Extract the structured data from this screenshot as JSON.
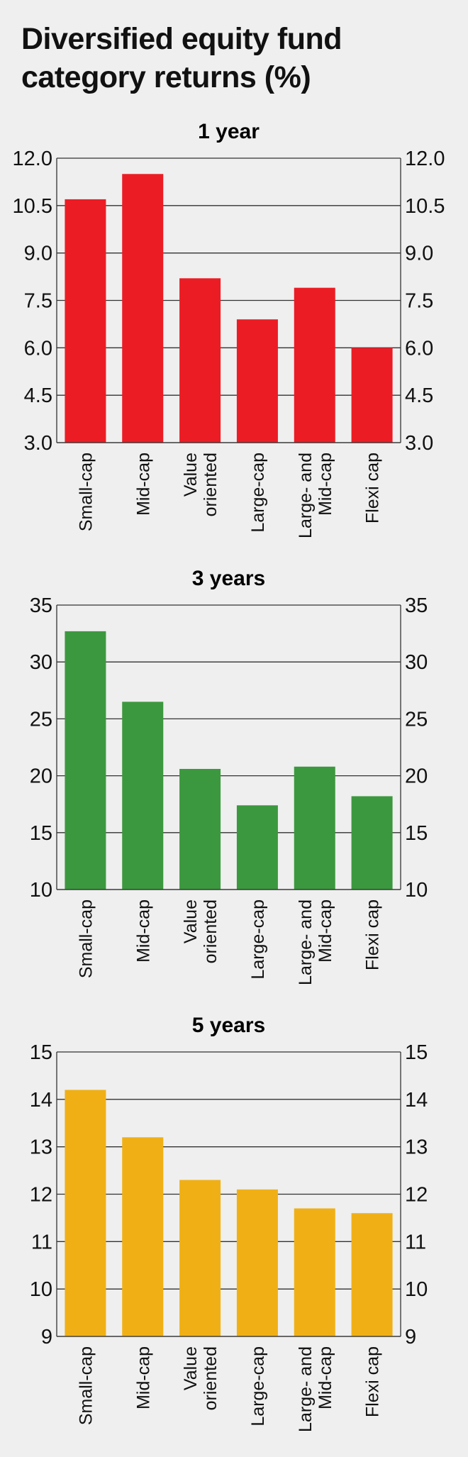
{
  "title": "Diversified equity fund category returns (%)",
  "chart_data": [
    {
      "type": "bar",
      "title": "1 year",
      "categories": [
        "Small-cap",
        "Mid-cap",
        "Value oriented",
        "Large-cap",
        "Large- and Mid-cap",
        "Flexi cap"
      ],
      "category_lines": [
        [
          "Small-cap"
        ],
        [
          "Mid-cap"
        ],
        [
          "Value",
          "oriented"
        ],
        [
          "Large-cap"
        ],
        [
          "Large- and",
          "Mid-cap"
        ],
        [
          "Flexi cap"
        ]
      ],
      "values": [
        10.7,
        11.5,
        8.2,
        6.9,
        7.9,
        6.0
      ],
      "ylim": [
        3.0,
        12.0
      ],
      "yticks": [
        "3.0",
        "4.5",
        "6.0",
        "7.5",
        "9.0",
        "10.5",
        "12.0"
      ],
      "color": "#ec1c24",
      "grid": true
    },
    {
      "type": "bar",
      "title": "3 years",
      "categories": [
        "Small-cap",
        "Mid-cap",
        "Value oriented",
        "Large-cap",
        "Large- and Mid-cap",
        "Flexi cap"
      ],
      "category_lines": [
        [
          "Small-cap"
        ],
        [
          "Mid-cap"
        ],
        [
          "Value",
          "oriented"
        ],
        [
          "Large-cap"
        ],
        [
          "Large- and",
          "Mid-cap"
        ],
        [
          "Flexi cap"
        ]
      ],
      "values": [
        32.7,
        26.5,
        20.6,
        17.4,
        20.8,
        18.2
      ],
      "ylim": [
        10,
        35
      ],
      "yticks": [
        "10",
        "15",
        "20",
        "25",
        "30",
        "35"
      ],
      "color": "#3c983e",
      "grid": true
    },
    {
      "type": "bar",
      "title": "5 years",
      "categories": [
        "Small-cap",
        "Mid-cap",
        "Value oriented",
        "Large-cap",
        "Large- and Mid-cap",
        "Flexi cap"
      ],
      "category_lines": [
        [
          "Small-cap"
        ],
        [
          "Mid-cap"
        ],
        [
          "Value",
          "oriented"
        ],
        [
          "Large-cap"
        ],
        [
          "Large- and",
          "Mid-cap"
        ],
        [
          "Flexi cap"
        ]
      ],
      "values": [
        14.2,
        13.2,
        12.3,
        12.1,
        11.7,
        11.6
      ],
      "ylim": [
        9,
        15
      ],
      "yticks": [
        "9",
        "10",
        "11",
        "12",
        "13",
        "14",
        "15"
      ],
      "color": "#f0b015",
      "grid": true
    }
  ]
}
